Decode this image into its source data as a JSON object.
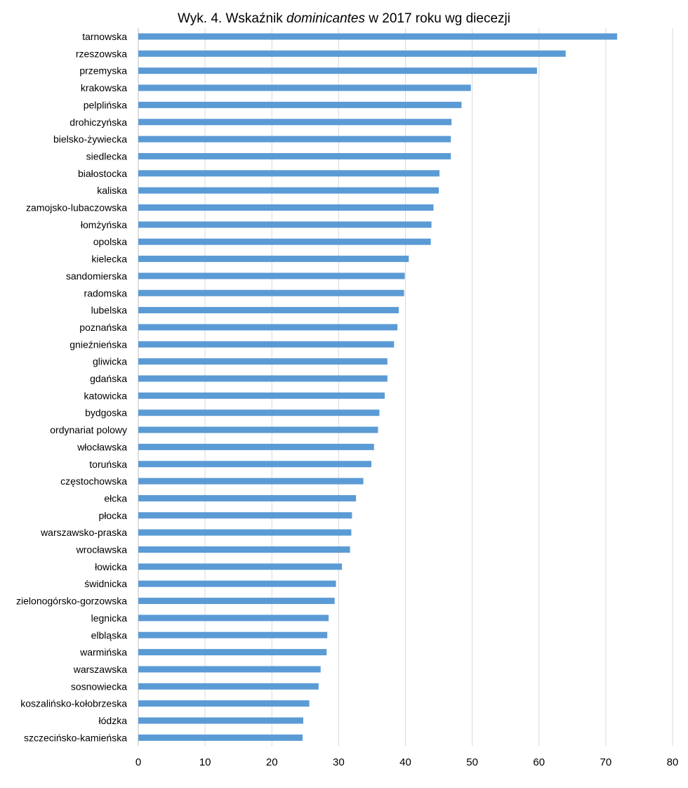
{
  "title": {
    "prefix": "Wyk. 4. Wskaźnik ",
    "emphasis": "dominicantes",
    "suffix": " w 2017 roku wg diecezji"
  },
  "chart_data": {
    "type": "bar",
    "orientation": "horizontal",
    "title": "Wyk. 4. Wskaźnik dominicantes w 2017 roku wg diecezji",
    "categories": [
      "tarnowska",
      "rzeszowska",
      "przemyska",
      "krakowska",
      "pelplińska",
      "drohiczyńska",
      "bielsko-żywiecka",
      "siedlecka",
      "białostocka",
      "kaliska",
      "zamojsko-lubaczowska",
      "łomżyńska",
      "opolska",
      "kielecka",
      "sandomierska",
      "radomska",
      "lubelska",
      "poznańska",
      "gnieźnieńska",
      "gliwicka",
      "gdańska",
      "katowicka",
      "bydgoska",
      "ordynariat polowy",
      "włocławska",
      "toruńska",
      "częstochowska",
      "ełcka",
      "płocka",
      "warszawsko-praska",
      "wrocławska",
      "łowicka",
      "świdnicka",
      "zielonogórsko-gorzowska",
      "legnicka",
      "elbląska",
      "warmińska",
      "warszawska",
      "sosnowiecka",
      "koszalińsko-kołobrzeska",
      "łódzka",
      "szczecińsko-kamieńska"
    ],
    "values": [
      71.7,
      64.0,
      59.7,
      49.8,
      48.4,
      46.9,
      46.8,
      46.8,
      45.1,
      45.0,
      44.2,
      43.9,
      43.8,
      40.5,
      39.9,
      39.8,
      39.0,
      38.8,
      38.3,
      37.3,
      37.3,
      36.9,
      36.1,
      35.9,
      35.3,
      34.9,
      33.7,
      32.6,
      32.0,
      31.9,
      31.7,
      30.5,
      29.6,
      29.4,
      28.5,
      28.3,
      28.2,
      27.3,
      27.0,
      25.6,
      24.7,
      24.6
    ],
    "xlim": [
      0,
      80
    ],
    "ticks": [
      "0",
      "10",
      "20",
      "30",
      "40",
      "50",
      "60",
      "70",
      "80"
    ],
    "xlabel": "",
    "ylabel": "",
    "grid": "vertical",
    "legend": "none",
    "colors": {
      "bar": "#5b9bd5",
      "grid": "#d9d9d9",
      "axis": "#bfbfbf"
    }
  }
}
